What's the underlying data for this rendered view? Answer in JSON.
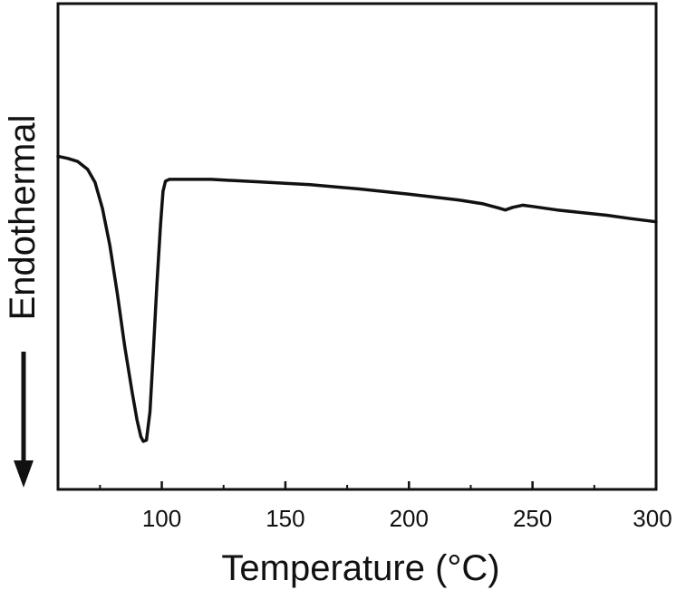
{
  "chart_data": {
    "type": "line",
    "title": "",
    "xlabel": "Temperature (°C)",
    "ylabel": "Endothermal",
    "xlim": [
      58,
      300
    ],
    "ylim": [
      0,
      100
    ],
    "xticks": [
      100,
      150,
      200,
      250,
      300
    ],
    "grid": false,
    "legend": "none",
    "series": [
      {
        "color": "#111111",
        "points": [
          [
            58,
            65.5
          ],
          [
            62,
            65.0
          ],
          [
            66,
            64.3
          ],
          [
            70,
            62.5
          ],
          [
            73,
            59.5
          ],
          [
            76,
            53.5
          ],
          [
            79,
            45.0
          ],
          [
            82,
            34.0
          ],
          [
            85,
            22.0
          ],
          [
            88,
            11.5
          ],
          [
            90,
            5.0
          ],
          [
            91.5,
            1.3
          ],
          [
            92.5,
            0.2
          ],
          [
            93.8,
            0.5
          ],
          [
            95.2,
            7.0
          ],
          [
            96.5,
            20.0
          ],
          [
            98,
            36.0
          ],
          [
            99.5,
            50.0
          ],
          [
            100.5,
            57.5
          ],
          [
            101.5,
            59.8
          ],
          [
            103,
            60.2
          ],
          [
            120,
            60.2
          ],
          [
            140,
            59.6
          ],
          [
            160,
            59.0
          ],
          [
            180,
            58.0
          ],
          [
            200,
            56.8
          ],
          [
            220,
            55.5
          ],
          [
            230,
            54.6
          ],
          [
            236,
            53.7
          ],
          [
            239,
            53.2
          ],
          [
            242,
            53.8
          ],
          [
            246,
            54.3
          ],
          [
            250,
            54.0
          ],
          [
            260,
            53.2
          ],
          [
            270,
            52.6
          ],
          [
            280,
            52.0
          ],
          [
            290,
            51.2
          ],
          [
            300,
            50.5
          ]
        ]
      }
    ]
  }
}
